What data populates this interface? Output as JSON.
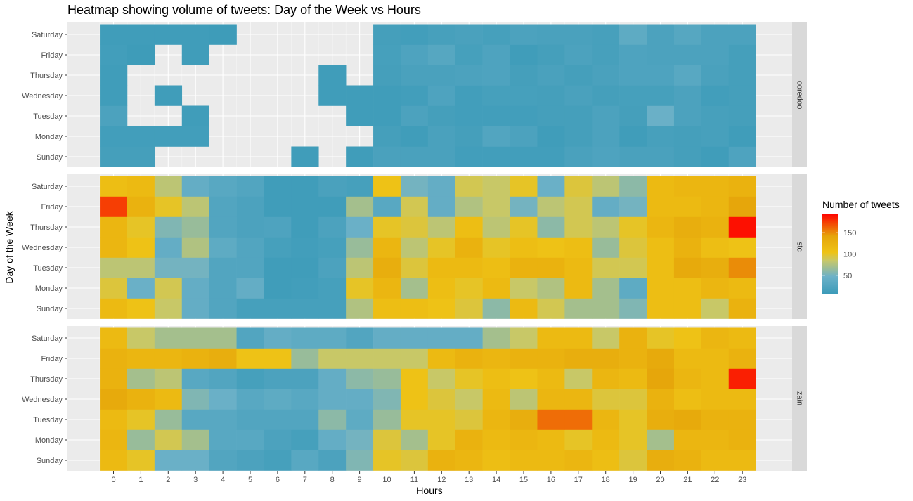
{
  "chart_data": {
    "type": "heatmap",
    "title": "Heatmap showing volume of tweets: Day of the Week vs Hours",
    "xlabel": "Hours",
    "ylabel": "Day of the Week",
    "x": [
      0,
      1,
      2,
      3,
      4,
      5,
      6,
      7,
      8,
      9,
      10,
      11,
      12,
      13,
      14,
      15,
      16,
      17,
      18,
      19,
      20,
      21,
      22,
      23
    ],
    "y": [
      "Sunday",
      "Monday",
      "Tuesday",
      "Wednesday",
      "Thursday",
      "Friday",
      "Saturday"
    ],
    "facet_labels": [
      "ooredoo",
      "stc",
      "zain"
    ],
    "legend": {
      "title": "Number of tweets",
      "ticks": [
        50,
        100,
        150
      ],
      "range": [
        5,
        195
      ],
      "colors": [
        "#3a9ab8",
        "#6cb1c8",
        "#c8c868",
        "#eec316",
        "#e6a50a",
        "#ff0000"
      ],
      "color_stops": [
        0,
        0.22,
        0.42,
        0.52,
        0.72,
        1.0
      ]
    },
    "panels": [
      {
        "name": "ooredoo",
        "values": {
          "Saturday": [
            10,
            10,
            10,
            10,
            8,
            null,
            null,
            null,
            null,
            null,
            14,
            12,
            16,
            18,
            15,
            20,
            18,
            18,
            16,
            35,
            20,
            28,
            20,
            20
          ],
          "Friday": [
            12,
            8,
            null,
            10,
            null,
            null,
            null,
            null,
            null,
            null,
            15,
            22,
            28,
            15,
            22,
            10,
            14,
            20,
            16,
            22,
            20,
            20,
            20,
            14
          ],
          "Thursday": [
            10,
            null,
            null,
            null,
            null,
            null,
            null,
            null,
            10,
            null,
            14,
            18,
            18,
            20,
            22,
            14,
            18,
            14,
            18,
            22,
            22,
            30,
            18,
            14
          ],
          "Wednesday": [
            10,
            null,
            10,
            null,
            null,
            null,
            null,
            null,
            10,
            10,
            10,
            12,
            22,
            12,
            15,
            15,
            14,
            18,
            14,
            15,
            15,
            20,
            12,
            14
          ],
          "Tuesday": [
            20,
            null,
            null,
            10,
            null,
            null,
            null,
            null,
            null,
            10,
            10,
            20,
            14,
            12,
            12,
            12,
            14,
            14,
            20,
            14,
            45,
            20,
            16,
            14
          ],
          "Monday": [
            12,
            12,
            12,
            12,
            null,
            null,
            null,
            null,
            null,
            null,
            14,
            10,
            18,
            14,
            25,
            20,
            10,
            14,
            20,
            10,
            16,
            14,
            16,
            10
          ],
          "Sunday": [
            14,
            14,
            null,
            null,
            null,
            null,
            null,
            10,
            null,
            10,
            18,
            18,
            18,
            12,
            12,
            12,
            12,
            18,
            22,
            18,
            18,
            14,
            10,
            22
          ]
        }
      },
      {
        "name": "stc",
        "values": {
          "Saturday": [
            110,
            115,
            80,
            40,
            30,
            25,
            10,
            10,
            18,
            15,
            105,
            50,
            40,
            90,
            85,
            100,
            45,
            95,
            80,
            60,
            115,
            120,
            120,
            125
          ],
          "Friday": [
            175,
            125,
            100,
            80,
            25,
            20,
            10,
            10,
            10,
            70,
            30,
            90,
            40,
            75,
            85,
            50,
            80,
            90,
            40,
            50,
            115,
            115,
            120,
            140
          ],
          "Thursday": [
            120,
            100,
            55,
            65,
            25,
            20,
            22,
            10,
            20,
            45,
            100,
            95,
            80,
            110,
            80,
            100,
            60,
            90,
            80,
            100,
            120,
            130,
            125,
            190
          ],
          "Wednesday": [
            120,
            105,
            40,
            75,
            35,
            25,
            15,
            12,
            15,
            65,
            120,
            80,
            100,
            125,
            100,
            110,
            105,
            110,
            65,
            95,
            110,
            125,
            110,
            105
          ],
          "Tuesday": [
            80,
            80,
            50,
            50,
            25,
            25,
            10,
            10,
            20,
            80,
            130,
            95,
            115,
            115,
            110,
            125,
            125,
            115,
            90,
            90,
            110,
            135,
            130,
            150
          ],
          "Monday": [
            95,
            45,
            90,
            40,
            25,
            40,
            10,
            12,
            15,
            100,
            120,
            70,
            110,
            100,
            115,
            85,
            75,
            115,
            70,
            35,
            110,
            110,
            120,
            115
          ],
          "Sunday": [
            115,
            105,
            85,
            40,
            25,
            15,
            15,
            15,
            15,
            75,
            110,
            110,
            105,
            95,
            60,
            115,
            90,
            70,
            70,
            55,
            110,
            110,
            85,
            125
          ]
        }
      },
      {
        "name": "zain",
        "values": {
          "Saturday": [
            115,
            85,
            70,
            70,
            70,
            25,
            40,
            35,
            35,
            25,
            40,
            40,
            40,
            40,
            70,
            85,
            115,
            115,
            85,
            125,
            100,
            105,
            120,
            115
          ],
          "Friday": [
            125,
            120,
            120,
            125,
            130,
            105,
            105,
            65,
            85,
            85,
            85,
            85,
            115,
            125,
            120,
            125,
            125,
            130,
            130,
            125,
            135,
            115,
            115,
            125
          ],
          "Thursday": [
            125,
            70,
            80,
            30,
            25,
            15,
            20,
            20,
            40,
            60,
            65,
            105,
            85,
            100,
            110,
            105,
            115,
            85,
            120,
            115,
            140,
            120,
            115,
            185
          ],
          "Wednesday": [
            135,
            125,
            115,
            55,
            45,
            30,
            35,
            30,
            40,
            40,
            55,
            105,
            95,
            85,
            115,
            80,
            120,
            120,
            95,
            95,
            125,
            110,
            115,
            115
          ],
          "Tuesday": [
            115,
            100,
            65,
            30,
            30,
            25,
            25,
            25,
            60,
            35,
            65,
            100,
            100,
            95,
            120,
            130,
            160,
            160,
            120,
            100,
            130,
            135,
            125,
            125
          ],
          "Monday": [
            120,
            65,
            90,
            70,
            30,
            30,
            20,
            15,
            40,
            50,
            95,
            70,
            100,
            125,
            115,
            120,
            115,
            100,
            115,
            100,
            70,
            120,
            120,
            125
          ],
          "Sunday": [
            115,
            100,
            45,
            45,
            25,
            20,
            15,
            30,
            20,
            55,
            100,
            95,
            125,
            120,
            110,
            115,
            115,
            120,
            110,
            95,
            130,
            125,
            115,
            115
          ]
        }
      }
    ]
  }
}
